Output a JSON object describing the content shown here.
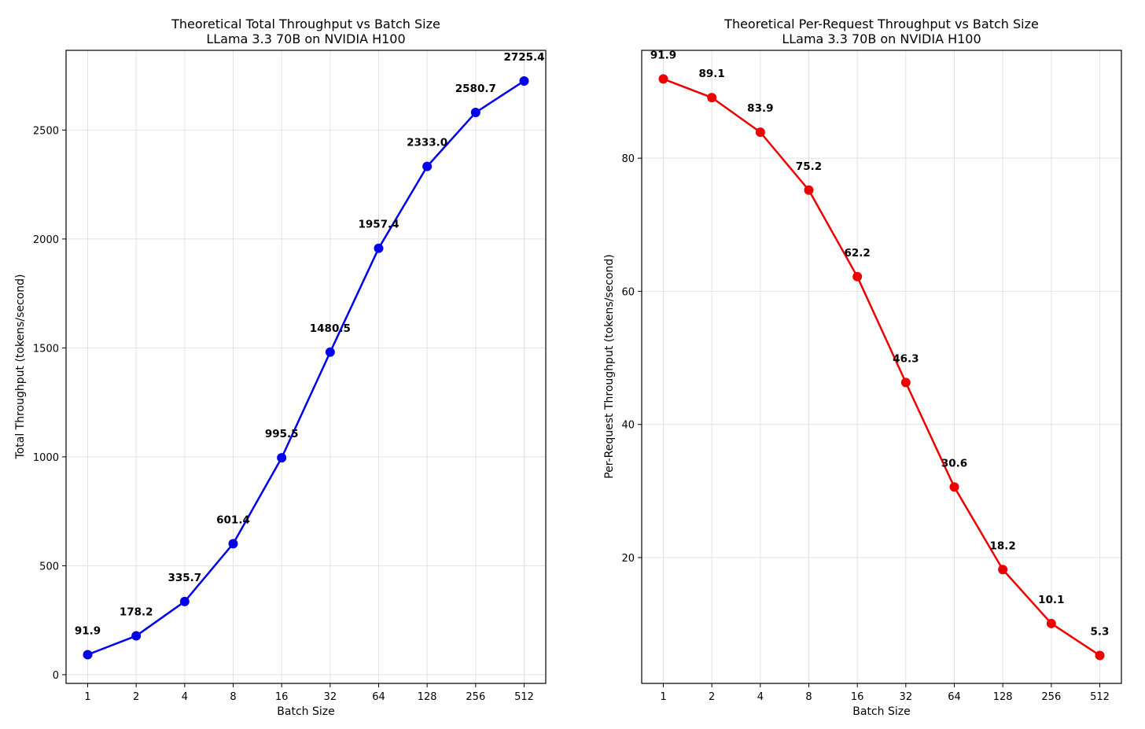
{
  "chart_data": [
    {
      "type": "line",
      "title": "Theoretical Total Throughput vs Batch Size",
      "subtitle": "LLama 3.3 70B on NVIDIA H100",
      "xlabel": "Batch Size",
      "ylabel": "Total Throughput (tokens/second)",
      "categories": [
        "1",
        "2",
        "4",
        "8",
        "16",
        "32",
        "64",
        "128",
        "256",
        "512"
      ],
      "series": [
        {
          "color": "#0000ee",
          "values": [
            91.9,
            178.2,
            335.7,
            601.4,
            995.5,
            1480.5,
            1957.4,
            2333.0,
            2580.7,
            2725.4
          ]
        }
      ],
      "data_labels": [
        "91.9",
        "178.2",
        "335.7",
        "601.4",
        "995.5",
        "1480.5",
        "1957.4",
        "2333.0",
        "2580.7",
        "2725.4"
      ],
      "ylim": [
        -40,
        2866
      ],
      "yticks": [
        0,
        500,
        1000,
        1500,
        2000,
        2500
      ],
      "grid": true,
      "legend": "none"
    },
    {
      "type": "line",
      "title": "Theoretical Per-Request Throughput vs Batch Size",
      "subtitle": "LLama 3.3 70B on NVIDIA H100",
      "xlabel": "Batch Size",
      "ylabel": "Per-Request Throughput (tokens/second)",
      "categories": [
        "1",
        "2",
        "4",
        "8",
        "16",
        "32",
        "64",
        "128",
        "256",
        "512"
      ],
      "series": [
        {
          "color": "#ee0000",
          "values": [
            91.9,
            89.1,
            83.9,
            75.2,
            62.2,
            46.3,
            30.6,
            18.2,
            10.1,
            5.3
          ]
        }
      ],
      "data_labels": [
        "91.9",
        "89.1",
        "83.9",
        "75.2",
        "62.2",
        "46.3",
        "30.6",
        "18.2",
        "10.1",
        "5.3"
      ],
      "ylim": [
        1.1,
        96.2
      ],
      "yticks": [
        20,
        40,
        60,
        80
      ],
      "grid": true,
      "legend": "none"
    }
  ]
}
